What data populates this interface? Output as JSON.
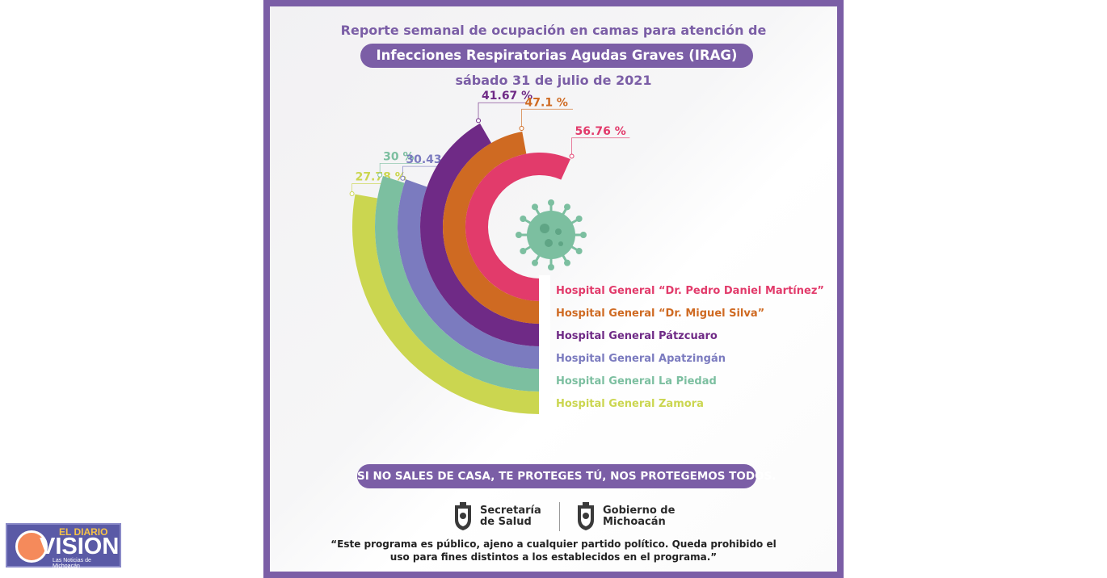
{
  "header": {
    "line1": "Reporte semanal de ocupación en camas para atención de",
    "line2": "Infecciones Respiratorias Agudas Graves (IRAG)",
    "line3": "sábado 31 de julio de 2021"
  },
  "chart_data": {
    "type": "radial-bar",
    "title": "Reporte semanal de ocupación en camas para atención de Infecciones Respiratorias Agudas Graves (IRAG)",
    "subtitle": "sábado 31 de julio de 2021",
    "categories": [
      "Hospital General “Dr. Pedro Daniel Martínez”",
      "Hospital General “Dr. Miguel Silva”",
      "Hospital General Pátzcuaro",
      "Hospital General Apatzingán",
      "Hospital General La Piedad",
      "Hospital General Zamora"
    ],
    "values": [
      56.76,
      47.1,
      41.67,
      30.43,
      30,
      27.78
    ],
    "value_labels": [
      "56.76 %",
      "47.1 %",
      "41.67 %",
      "30.43 %",
      "30 %",
      "27.78 %"
    ],
    "colors": [
      "#e23b6b",
      "#cf6a22",
      "#6f2a86",
      "#7b7bbf",
      "#7cbfa0",
      "#cbd650"
    ],
    "unit": "%"
  },
  "slogan": "SI NO SALES DE CASA, TE PROTEGES TÚ, NOS PROTEGEMOS TODOS.",
  "logos": [
    {
      "line1": "Secretaría",
      "line2": "de Salud"
    },
    {
      "line1": "Gobierno de",
      "line2": "Michoacán"
    }
  ],
  "disclaimer": {
    "line1": "“Este programa es público, ajeno a cualquier partido político. Queda prohibido el",
    "line2": "uso para fines distintos a los establecidos en el programa.”"
  },
  "brand": {
    "top": "EL DIARIO",
    "main": "VISION",
    "sub": "Las Noticias de Michoacán"
  },
  "virus_color": "#7cbfa0",
  "accent_color": "#7b5ea6"
}
